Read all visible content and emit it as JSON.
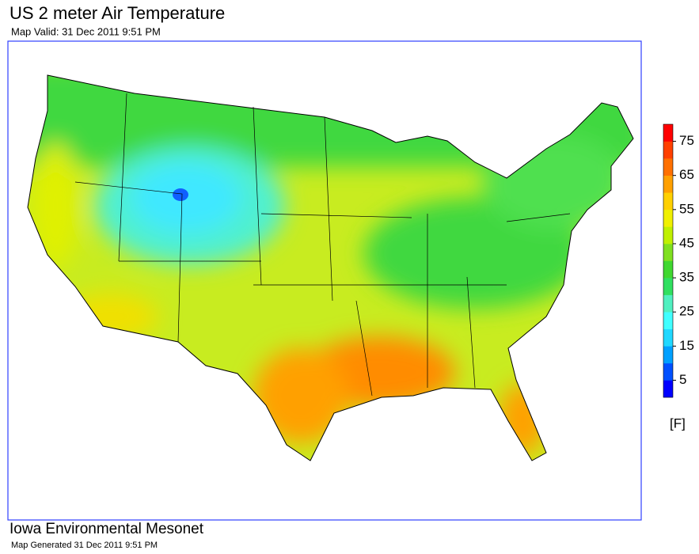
{
  "header": {
    "title": "US 2 meter Air Temperature",
    "subtitle": "Map Valid: 31 Dec 2011 9:51 PM"
  },
  "legend": {
    "range": [
      0,
      80
    ],
    "ticks": [
      5,
      15,
      25,
      35,
      45,
      55,
      65,
      75
    ],
    "unit": "[F]",
    "colors": [
      "#0000ff",
      "#0050ff",
      "#00a0ff",
      "#20d8ff",
      "#40ffff",
      "#50f0c0",
      "#30e060",
      "#40d830",
      "#80e020",
      "#c0f000",
      "#f0f000",
      "#ffd000",
      "#ffa000",
      "#ff7000",
      "#ff4000",
      "#ff0000"
    ]
  },
  "footer": {
    "organization": "Iowa Environmental Mesonet",
    "generated": "Map Generated 31 Dec 2011 9:51 PM"
  }
}
